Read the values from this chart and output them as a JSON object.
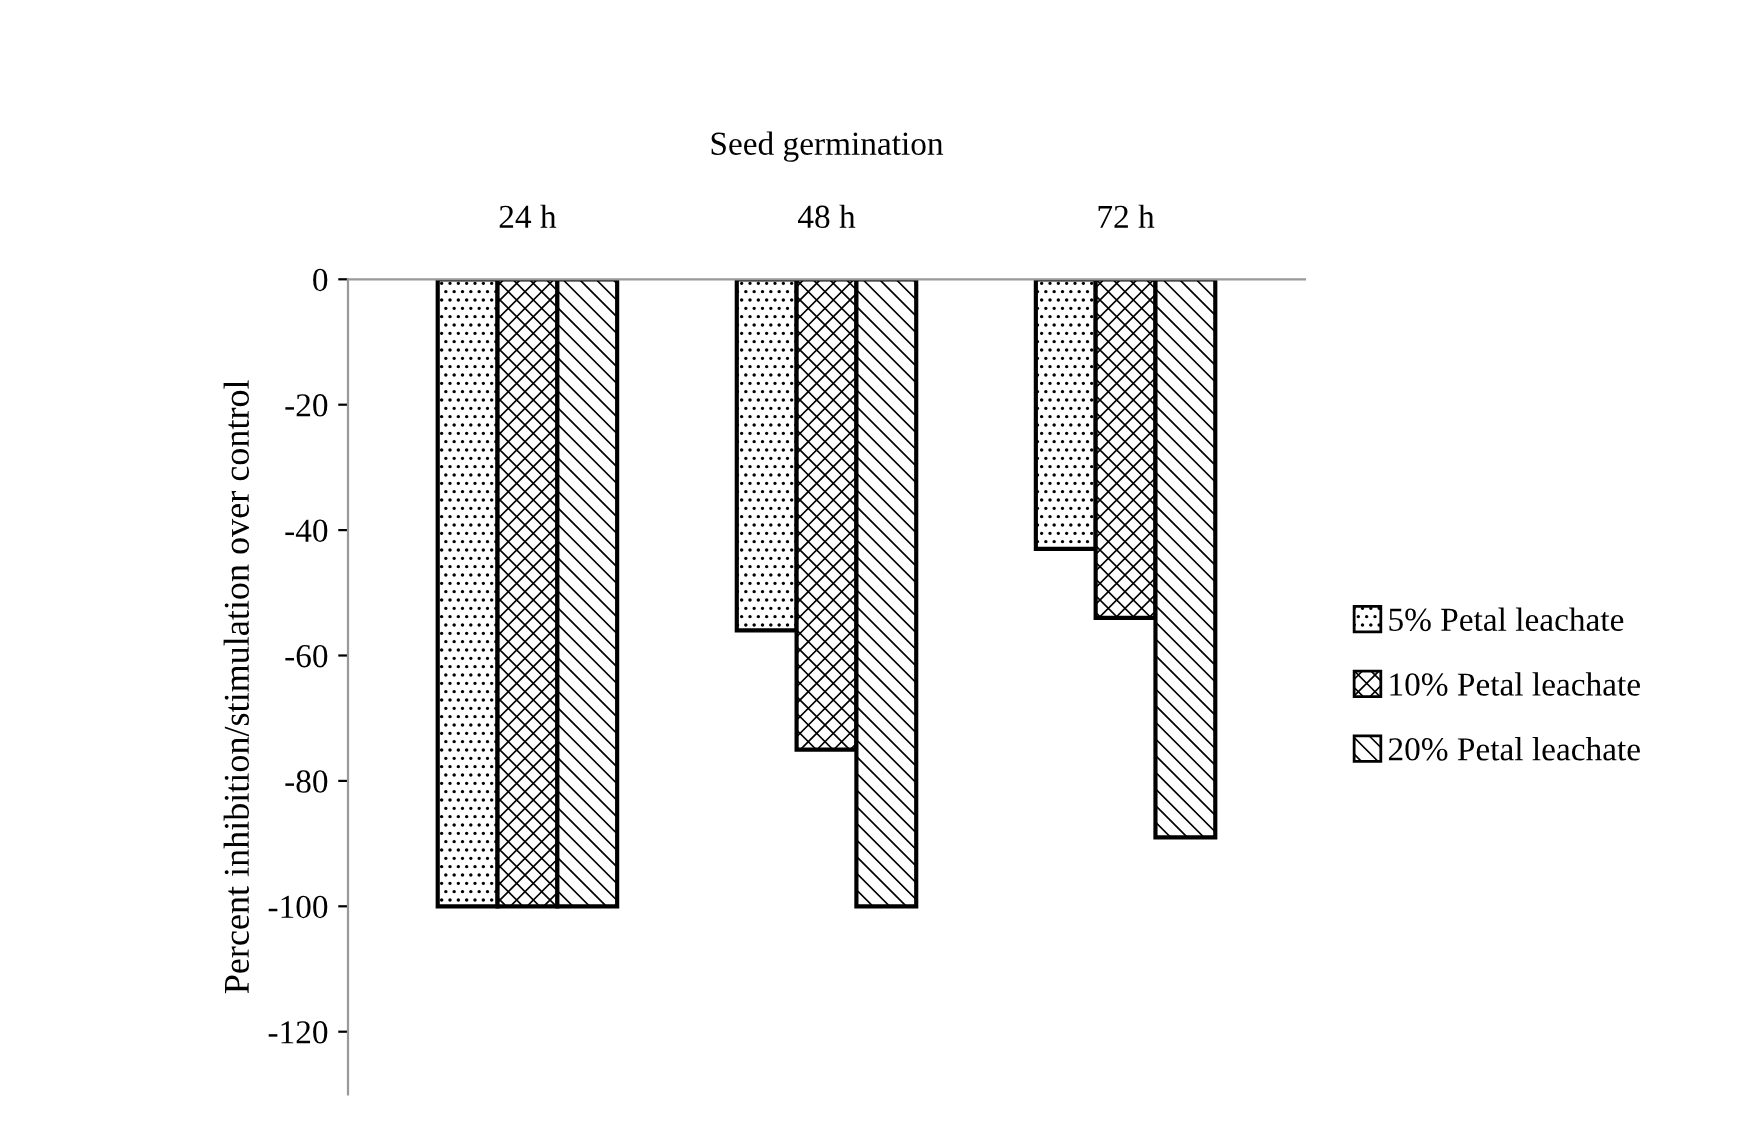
{
  "chart_data": {
    "type": "bar",
    "xlabel": "Seed germination",
    "ylabel": "Percent inhibition/stimulation over control",
    "categories": [
      "24 h",
      "48 h",
      "72 h"
    ],
    "series": [
      {
        "name": "5% Petal leachate",
        "color": "#000000",
        "values": [
          -100,
          -56,
          -43
        ]
      },
      {
        "name": "10% Petal leachate",
        "color": "#000000",
        "values": [
          -100,
          -75,
          -54
        ]
      },
      {
        "name": "20% Petal leachate",
        "color": "#000000",
        "values": [
          -100,
          -100,
          -89
        ]
      }
    ],
    "ylim": [
      -130,
      0
    ],
    "yticks": [
      0,
      -20,
      -40,
      -60,
      -80,
      -100,
      -120
    ],
    "grid": false,
    "legend": "right"
  }
}
